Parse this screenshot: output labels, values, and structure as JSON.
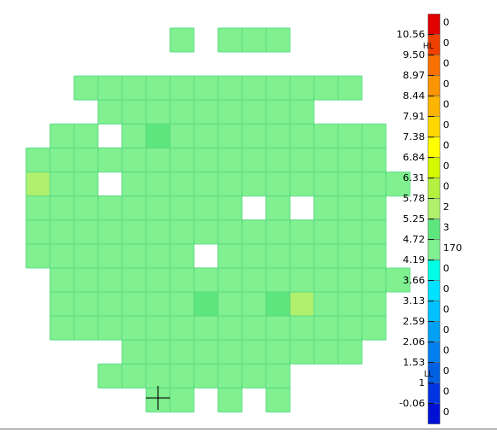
{
  "legend": {
    "high_limit": "HL",
    "low_limit": "LL",
    "labels": [
      "10.56",
      "9.50",
      "8.97",
      "8.44",
      "7.91",
      "7.38",
      "6.84",
      "6.31",
      "5.78",
      "5.25",
      "4.72",
      "4.19",
      "3.66",
      "3.13",
      "2.59",
      "2.06",
      "1.53",
      "1",
      "-0.06"
    ],
    "bins": [
      {
        "count": 0,
        "color": "#e00000"
      },
      {
        "count": 0,
        "color": "#f04000"
      },
      {
        "count": 0,
        "color": "#f87000"
      },
      {
        "count": 0,
        "color": "#fa9400"
      },
      {
        "count": 0,
        "color": "#fcb400"
      },
      {
        "count": 0,
        "color": "#ffd800"
      },
      {
        "count": 0,
        "color": "#ffff00"
      },
      {
        "count": 0,
        "color": "#d4f800"
      },
      {
        "count": 0,
        "color": "#b4f040"
      },
      {
        "count": 2,
        "color": "#b0f06c"
      },
      {
        "count": 3,
        "color": "#5ee67e"
      },
      {
        "count": 170,
        "color": "#80f090"
      },
      {
        "count": 0,
        "color": "#00ffe4"
      },
      {
        "count": 0,
        "color": "#00e0ff"
      },
      {
        "count": 0,
        "color": "#00c0ff"
      },
      {
        "count": 0,
        "color": "#00a0f4"
      },
      {
        "count": 0,
        "color": "#0080f0"
      },
      {
        "count": 0,
        "color": "#0060e4"
      },
      {
        "count": 0,
        "color": "#0034e0"
      },
      {
        "count": 0,
        "color": "#0010d4"
      }
    ]
  }
}
